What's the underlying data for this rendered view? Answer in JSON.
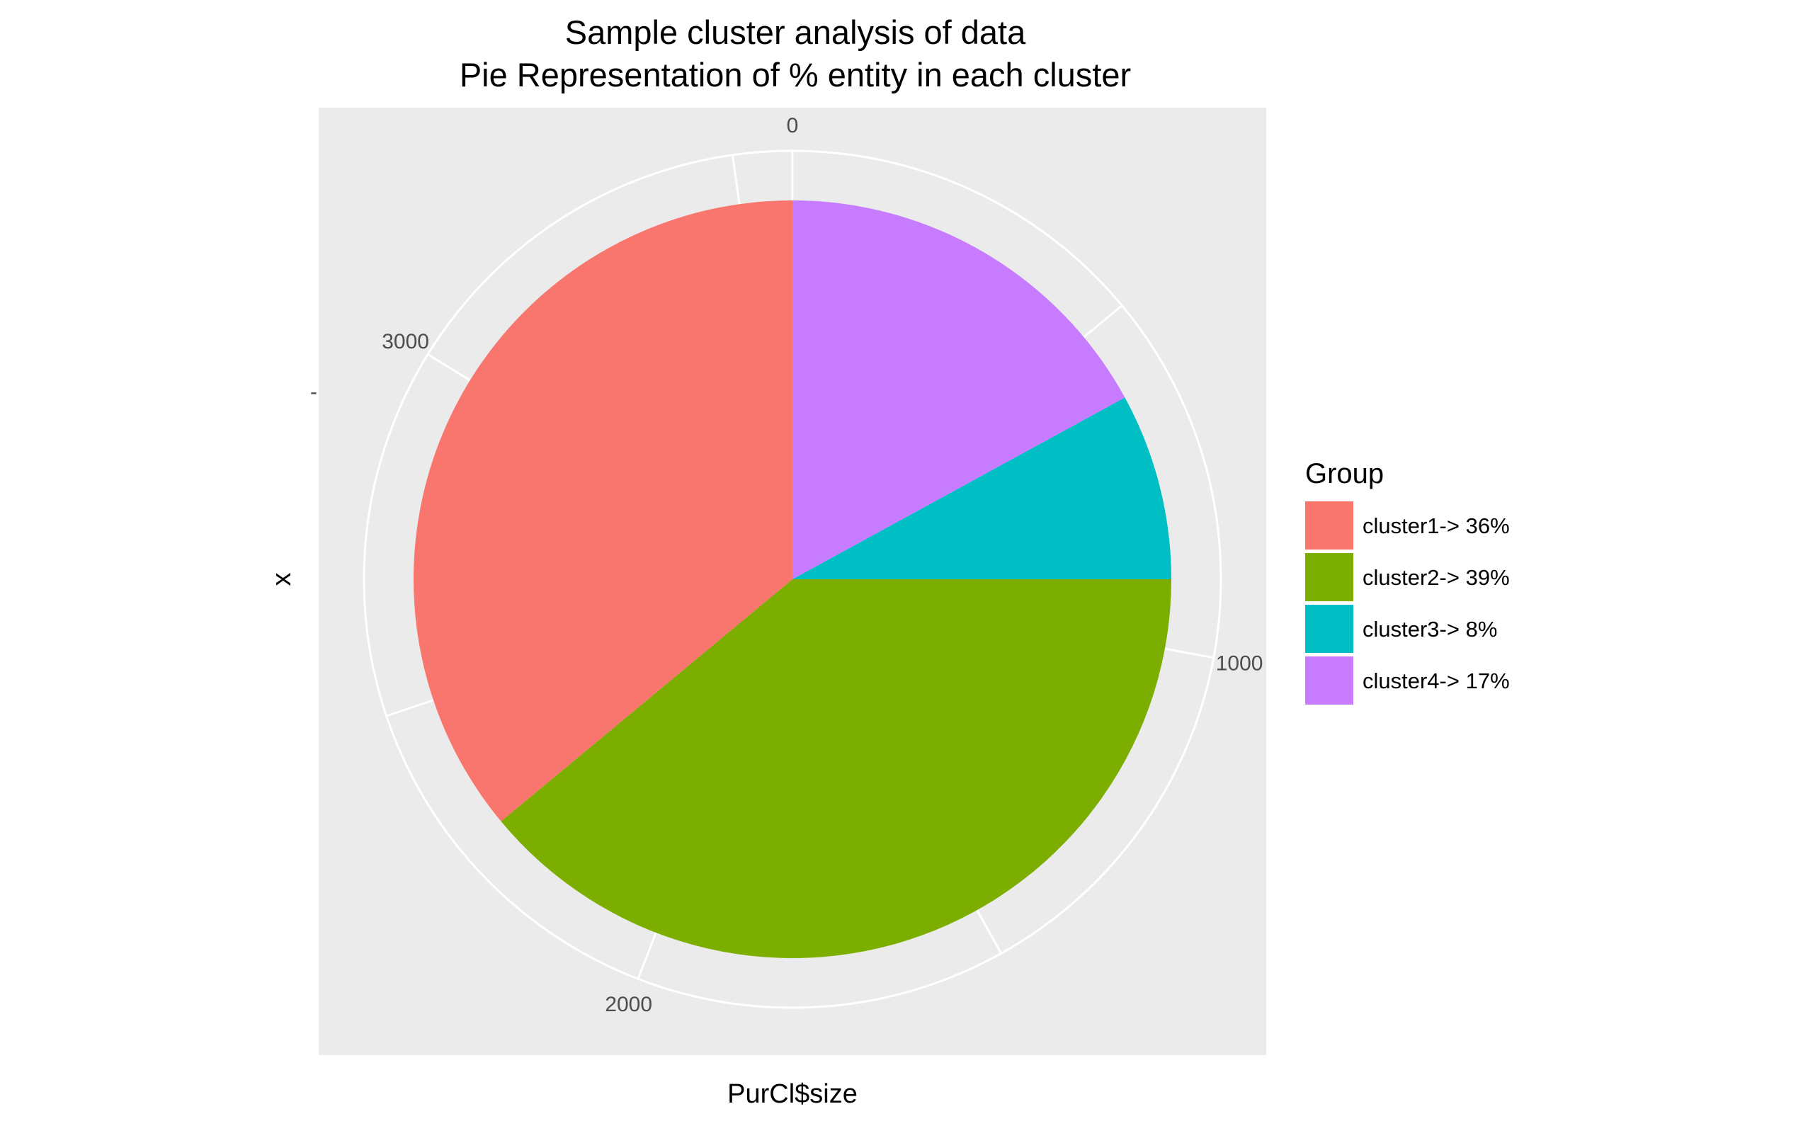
{
  "chart_data": {
    "type": "pie",
    "title": "Sample cluster analysis of data",
    "subtitle": "Pie Representation of % entity in each cluster",
    "xlabel": "PurCl$size",
    "ylabel": "x",
    "y_tick_label": "-",
    "categories": [
      "cluster1",
      "cluster2",
      "cluster3",
      "cluster4"
    ],
    "values": [
      1290,
      1395,
      285,
      610
    ],
    "colors": [
      "#F8766D",
      "#7CAE00",
      "#00BFC4",
      "#C77CFF"
    ],
    "angular_axis": {
      "range": [
        0,
        3580
      ],
      "ticks": [
        0,
        1000,
        2000,
        3000
      ],
      "tick_labels": [
        "0",
        "1000",
        "2000",
        "3000"
      ]
    },
    "legend": {
      "title": "Group",
      "position": "right",
      "entries": [
        "cluster1-> 36%",
        "cluster2-> 39%",
        "cluster3-> 8%",
        "cluster4-> 17%"
      ]
    },
    "panel_background": "#EBEBEB",
    "grid": true
  }
}
